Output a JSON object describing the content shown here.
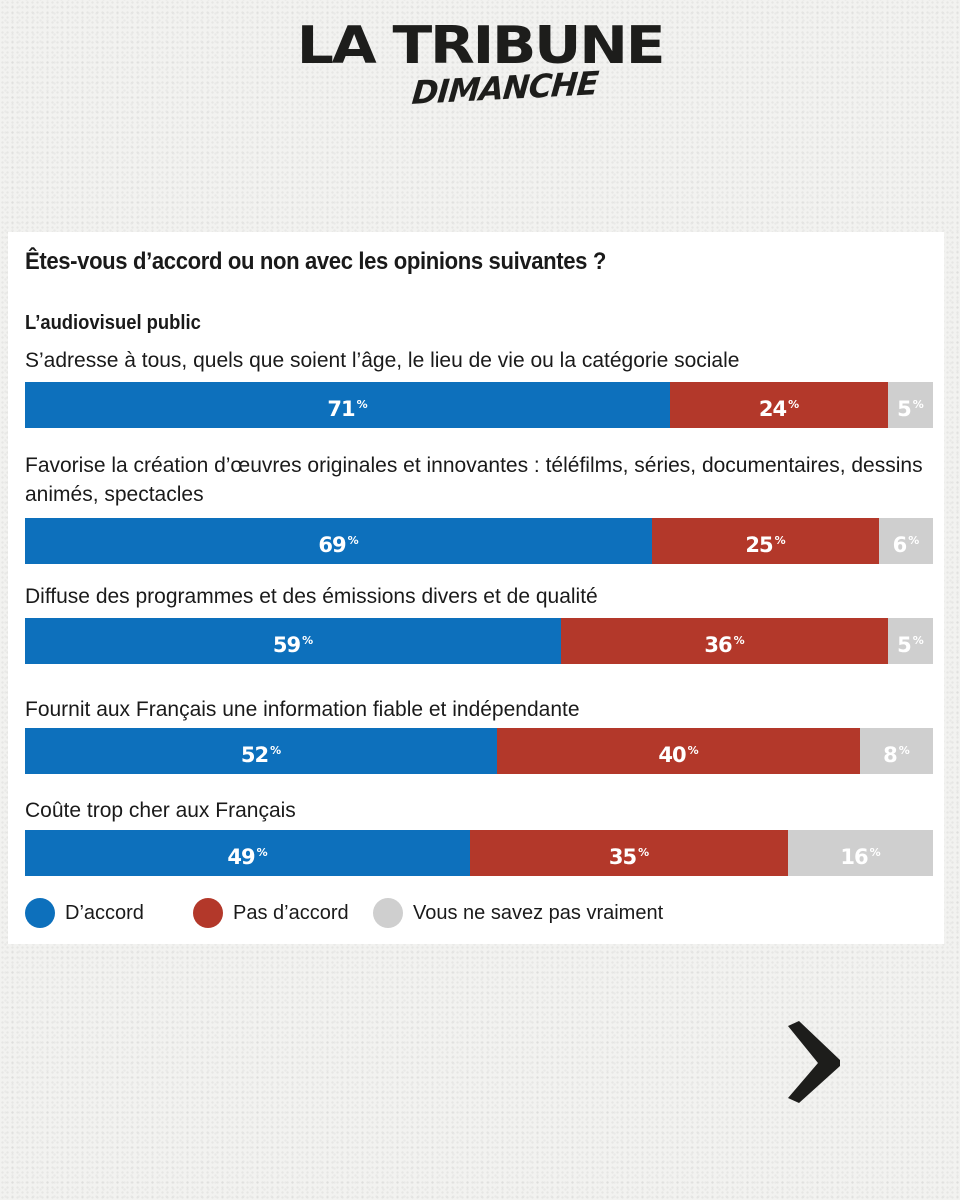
{
  "logo": {
    "main": "LA TRIBUNE",
    "sub": "DIMANCHE"
  },
  "chart_data": {
    "type": "bar",
    "orientation": "horizontal-stacked-100",
    "title": "Êtes-vous d’accord ou non avec les opinions suivantes ?",
    "subtitle": "L’audiovisuel public",
    "categories": [
      "S’adresse à tous, quels que soient l’âge, le lieu de vie ou la catégorie sociale",
      "Favorise la création d’œuvres originales et innovantes : téléfilms, séries, documentaires, dessins animés, spectacles",
      "Diffuse des programmes et des émissions divers et de qualité",
      "Fournit aux Français une information fiable et indépendante",
      "Coûte trop cher aux Français"
    ],
    "series": [
      {
        "name": "D’accord",
        "color": "#0d70bc",
        "values": [
          71,
          69,
          59,
          52,
          49
        ]
      },
      {
        "name": "Pas d’accord",
        "color": "#b3382a",
        "values": [
          24,
          25,
          36,
          40,
          35
        ]
      },
      {
        "name": "Vous ne savez pas vraiment",
        "color": "#cfcfcf",
        "values": [
          5,
          6,
          5,
          8,
          16
        ]
      }
    ],
    "unit": "%",
    "legend": "bottom"
  },
  "nav": {
    "next_icon": "chevron-right-icon"
  }
}
